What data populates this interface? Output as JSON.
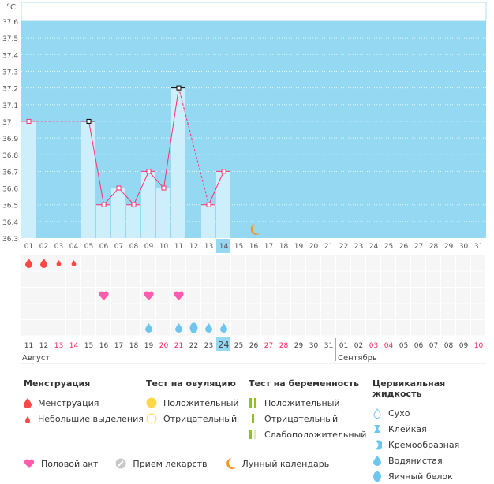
{
  "chart_data": {
    "type": "bar+line",
    "ylabel": "°C",
    "ylim": [
      36.3,
      37.6
    ],
    "yticks": [
      "37.6",
      "37.5",
      "37.4",
      "37.3",
      "37.2",
      "37.1",
      "37",
      "36.9",
      "36.8",
      "36.7",
      "36.6",
      "36.5",
      "36.4",
      "36.3"
    ],
    "cycle_days": [
      "01",
      "02",
      "03",
      "04",
      "05",
      "06",
      "07",
      "08",
      "09",
      "10",
      "11",
      "12",
      "13",
      "14",
      "15",
      "16",
      "17",
      "18",
      "19",
      "20",
      "21",
      "22",
      "23",
      "24",
      "25",
      "26",
      "27",
      "28",
      "29",
      "30",
      "31"
    ],
    "highlight_day_index": 13,
    "temperatures": [
      {
        "day": 1,
        "value": 37.0
      },
      {
        "day": 5,
        "value": 37.0,
        "marker": "black"
      },
      {
        "day": 6,
        "value": 36.5
      },
      {
        "day": 7,
        "value": 36.6
      },
      {
        "day": 8,
        "value": 36.5
      },
      {
        "day": 9,
        "value": 36.7
      },
      {
        "day": 10,
        "value": 36.6
      },
      {
        "day": 11,
        "value": 37.2,
        "marker": "black"
      },
      {
        "day": 13,
        "value": 36.5
      },
      {
        "day": 14,
        "value": 36.7
      }
    ],
    "dashed_segments": [
      [
        1,
        5
      ],
      [
        11,
        13
      ]
    ],
    "moon_day": 16,
    "dates": [
      "11",
      "12",
      "13",
      "14",
      "15",
      "16",
      "17",
      "18",
      "19",
      "20",
      "21",
      "22",
      "23",
      "24",
      "25",
      "26",
      "27",
      "28",
      "29",
      "30",
      "31",
      "01",
      "02",
      "03",
      "04",
      "05",
      "06",
      "07",
      "08",
      "09",
      "10"
    ],
    "red_dates": [
      2,
      3,
      9,
      10,
      16,
      17,
      23,
      24,
      30
    ],
    "months": [
      "Август",
      "Сентябрь"
    ],
    "month_split_index": 21,
    "menstruation": [
      {
        "day": 1,
        "type": "heavy"
      },
      {
        "day": 2,
        "type": "heavy"
      },
      {
        "day": 3,
        "type": "light"
      },
      {
        "day": 4,
        "type": "light"
      }
    ],
    "intercourse_days": [
      6,
      9,
      11
    ],
    "cervical": [
      {
        "day": 9,
        "type": "watery"
      },
      {
        "day": 11,
        "type": "watery"
      },
      {
        "day": 12,
        "type": "eggwhite"
      },
      {
        "day": 13,
        "type": "watery"
      },
      {
        "day": 14,
        "type": "watery"
      }
    ]
  },
  "legend": {
    "menstruation": {
      "title": "Менструация",
      "items": [
        "Менструация",
        "Небольшие выделения"
      ]
    },
    "ovulation": {
      "title": "Тест на овуляцию",
      "items": [
        "Положительный",
        "Отрицательный"
      ]
    },
    "pregnancy": {
      "title": "Тест на беременность",
      "items": [
        "Положительный",
        "Отрицательный",
        "Слабоположительный"
      ]
    },
    "cervical": {
      "title": "Цервикальная жидкость",
      "items": [
        "Сухо",
        "Клейкая",
        "Кремообразная",
        "Водянистая",
        "Яичный белок"
      ]
    },
    "other": [
      "Половой акт",
      "Прием лекарств",
      "Лунный календарь"
    ]
  },
  "colors": {
    "plot": "#94d8f2",
    "bar": "#cdeefb",
    "line": "#ff2e6e",
    "red": "#ff4747",
    "heart": "#ff5cb0",
    "drop": "#6ec6f0",
    "moon": "#f7941d"
  }
}
